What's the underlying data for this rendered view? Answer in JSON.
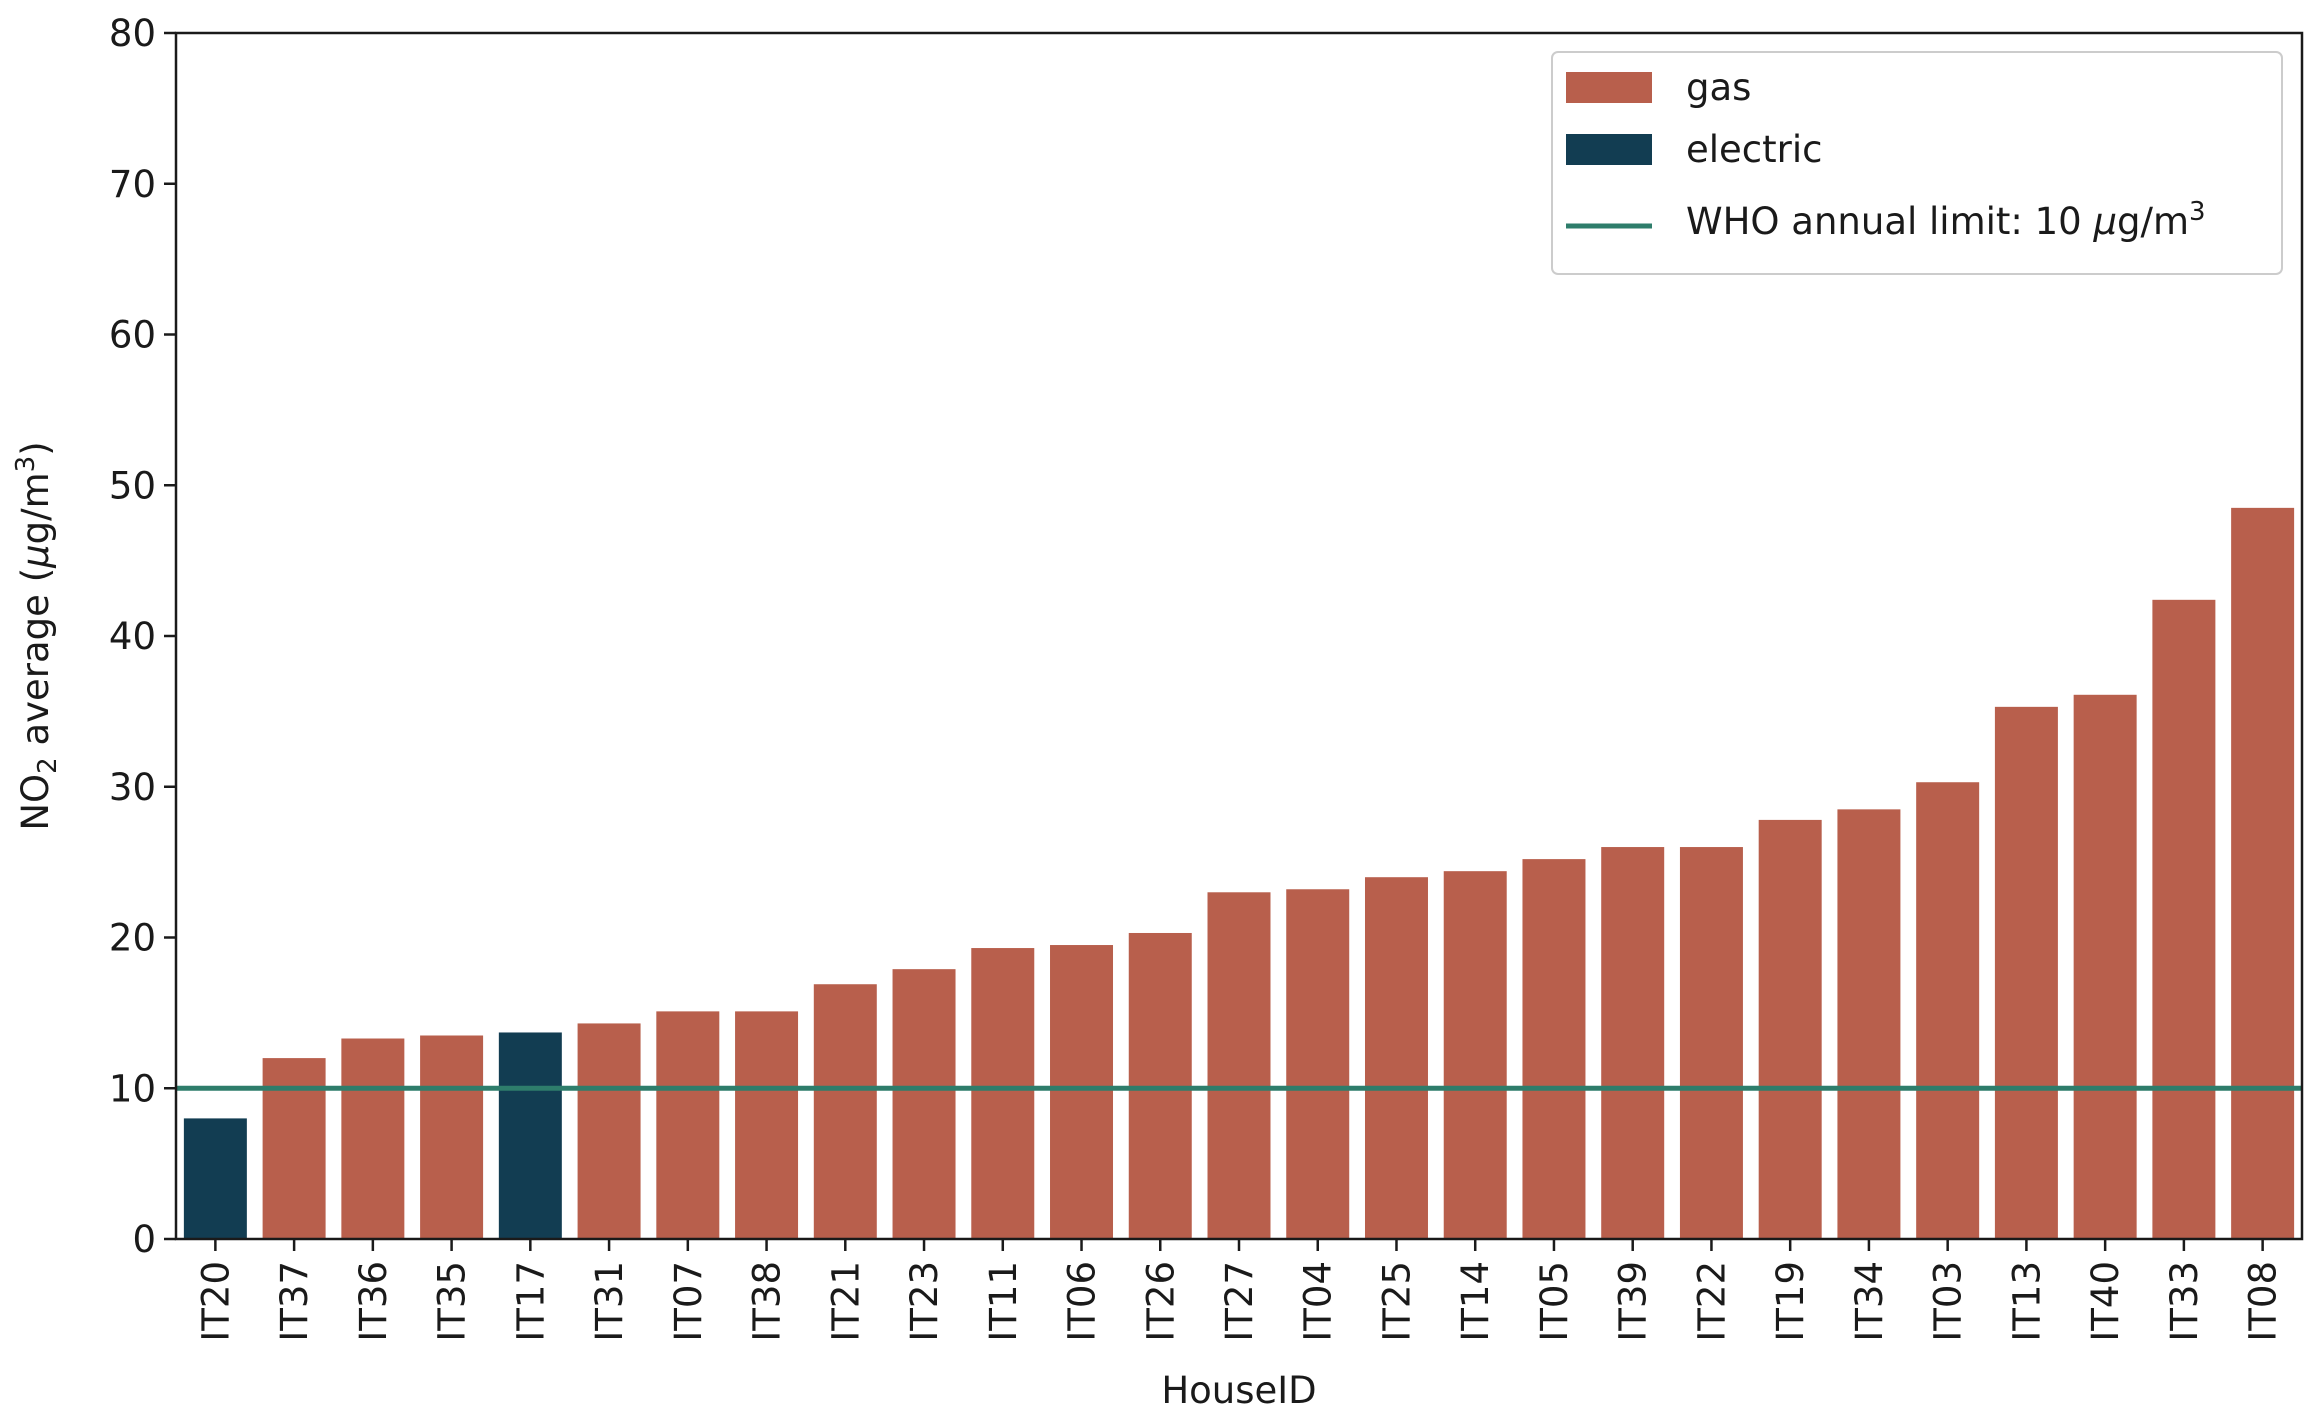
{
  "chart_data": {
    "type": "bar",
    "xlabel": "HouseID",
    "ylabel": {
      "prefix": "NO",
      "subscript": "2",
      "middle": " average (",
      "mu": "μ",
      "unit": "g/m",
      "superscript": "3",
      "suffix": ")"
    },
    "ylim": [
      0,
      80
    ],
    "yticks": [
      0,
      10,
      20,
      30,
      40,
      50,
      60,
      70,
      80
    ],
    "grid": false,
    "legend_position": "top-right",
    "categories": [
      "IT20",
      "IT37",
      "IT36",
      "IT35",
      "IT17",
      "IT31",
      "IT07",
      "IT38",
      "IT21",
      "IT23",
      "IT11",
      "IT06",
      "IT26",
      "IT27",
      "IT04",
      "IT25",
      "IT14",
      "IT05",
      "IT39",
      "IT22",
      "IT19",
      "IT34",
      "IT03",
      "IT13",
      "IT40",
      "IT33",
      "IT08"
    ],
    "values": [
      8.0,
      12.0,
      13.3,
      13.5,
      13.7,
      14.3,
      15.1,
      15.1,
      16.9,
      17.9,
      19.3,
      19.5,
      20.3,
      23.0,
      23.2,
      24.0,
      24.4,
      25.2,
      26.0,
      26.0,
      27.8,
      28.5,
      30.3,
      35.3,
      36.1,
      42.4,
      48.5
    ],
    "groups": [
      "electric",
      "gas",
      "gas",
      "gas",
      "electric",
      "gas",
      "gas",
      "gas",
      "gas",
      "gas",
      "gas",
      "gas",
      "gas",
      "gas",
      "gas",
      "gas",
      "gas",
      "gas",
      "gas",
      "gas",
      "gas",
      "gas",
      "gas",
      "gas",
      "gas",
      "gas",
      "gas"
    ],
    "series": [
      {
        "name": "gas",
        "color": "#b85f4c"
      },
      {
        "name": "electric",
        "color": "#123d52"
      }
    ],
    "reference_line": {
      "value": 10,
      "color": "#2e7d6b",
      "label": {
        "text": "WHO annual limit: 10 ",
        "mu": "μ",
        "unit": "g/m",
        "superscript": "3"
      }
    }
  }
}
